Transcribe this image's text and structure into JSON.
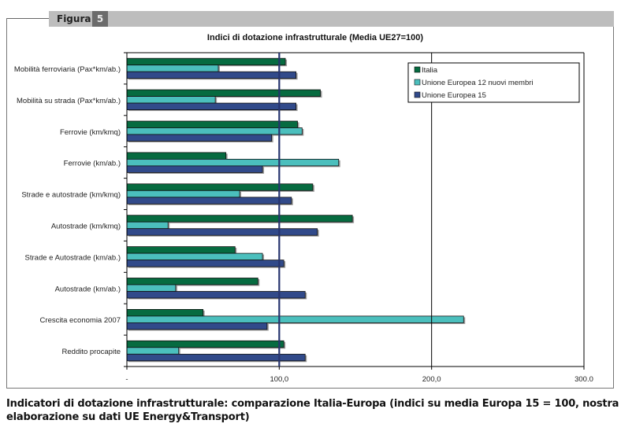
{
  "figure": {
    "label": "Figura",
    "number": "5"
  },
  "caption": "Indicatori di dotazione infrastrutturale: comparazione Italia-Europa (indici su media Europa 15 = 100, nostra elaborazione su dati UE Energy&Transport)",
  "chart_data": {
    "type": "bar",
    "orientation": "horizontal",
    "title": "Indici di dotazione infrastrutturale (Media UE27=100)",
    "xlabel": "",
    "ylabel": "",
    "xlim": [
      0,
      300
    ],
    "xticks": [
      0,
      100,
      200,
      300
    ],
    "xtick_labels": [
      "-",
      "100,0",
      "200,0",
      "300.0"
    ],
    "reference_line": 100,
    "grid": false,
    "legend_position": "top-right",
    "categories": [
      "Mobilità ferroviaria (Pax*km/ab.)",
      "Mobilità su strada (Pax*km/ab.)",
      "Ferrovie (km/kmq)",
      "Ferrovie (km/ab.)",
      "Strade e autostrade  (km/kmq)",
      "Autostrade (km/kmq)",
      "Strade e Autostrade (km/ab.)",
      "Autostrade (km/ab.)",
      "Crescita economia 2007",
      "Reddito procapite"
    ],
    "series": [
      {
        "name": "Italia",
        "color": "#066b40",
        "values": [
          104,
          127,
          112,
          65,
          122,
          148,
          71,
          86,
          50,
          103
        ]
      },
      {
        "name": "Unione Europea 12 nuovi membri",
        "color": "#4bbfbd",
        "values": [
          60,
          58,
          115,
          139,
          74,
          27,
          89,
          32,
          221,
          34
        ]
      },
      {
        "name": "Unione Europea 15",
        "color": "#314a8a",
        "values": [
          111,
          111,
          95,
          89,
          108,
          125,
          103,
          117,
          92,
          117
        ]
      }
    ]
  }
}
